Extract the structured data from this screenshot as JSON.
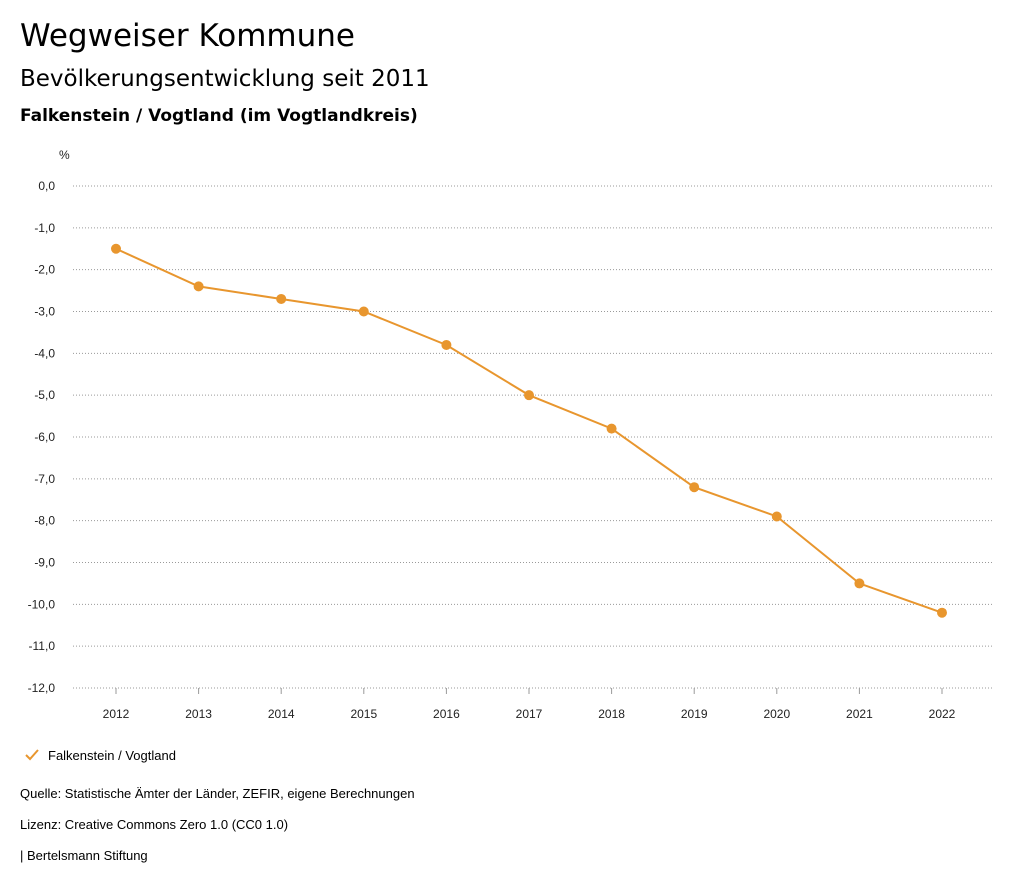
{
  "header": {
    "title": "Wegweiser Kommune",
    "subtitle": "Bevölkerungsentwicklung seit 2011",
    "place": "Falkenstein / Vogtland (im Vogtlandkreis)"
  },
  "chart_data": {
    "type": "line",
    "ylabel": "%",
    "xlabel": "",
    "ylim": [
      -12,
      0
    ],
    "ytick_step": 1,
    "ytick_labels": [
      "0,0",
      "-1,0",
      "-2,0",
      "-3,0",
      "-4,0",
      "-5,0",
      "-6,0",
      "-7,0",
      "-8,0",
      "-9,0",
      "-10,0",
      "-11,0",
      "-12,0"
    ],
    "categories": [
      "2012",
      "2013",
      "2014",
      "2015",
      "2016",
      "2017",
      "2018",
      "2019",
      "2020",
      "2021",
      "2022"
    ],
    "series": [
      {
        "name": "Falkenstein / Vogtland",
        "color": "#e8962e",
        "values": [
          -1.5,
          -2.4,
          -2.7,
          -3.0,
          -3.8,
          -5.0,
          -5.8,
          -7.2,
          -7.9,
          -9.5,
          -10.2
        ]
      }
    ],
    "grid": "horizontal-dotted",
    "legend_position": "bottom-left"
  },
  "legend": {
    "label": "Falkenstein / Vogtland",
    "icon": "check-icon"
  },
  "footer": {
    "source": "Quelle: Statistische Ämter der Länder, ZEFIR, eigene Berechnungen",
    "license": "Lizenz: Creative Commons Zero 1.0 (CC0 1.0)",
    "brand": "| Bertelsmann Stiftung"
  }
}
